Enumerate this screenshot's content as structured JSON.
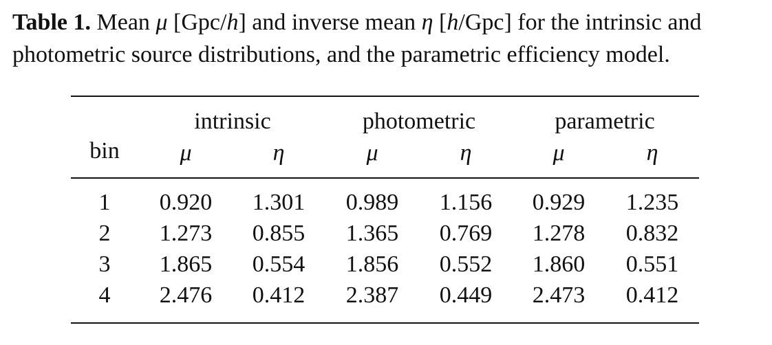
{
  "caption": {
    "label": "Table 1.",
    "text_1": " Mean ",
    "mu": "μ",
    "text_2": " [Gpc/",
    "h1": "h",
    "text_3": "] and inverse mean ",
    "eta": "η",
    "text_4": " [",
    "h2": "h",
    "text_5": "/Gpc] for the intrinsic and photometric source distributions, and the parametric efficiency model."
  },
  "table": {
    "groups": [
      "intrinsic",
      "photometric",
      "parametric"
    ],
    "bin_header": "bin",
    "sub_headers": [
      "μ",
      "η",
      "μ",
      "η",
      "μ",
      "η"
    ],
    "rows": [
      {
        "bin": "1",
        "values": [
          "0.920",
          "1.301",
          "0.989",
          "1.156",
          "0.929",
          "1.235"
        ]
      },
      {
        "bin": "2",
        "values": [
          "1.273",
          "0.855",
          "1.365",
          "0.769",
          "1.278",
          "0.832"
        ]
      },
      {
        "bin": "3",
        "values": [
          "1.865",
          "0.554",
          "1.856",
          "0.552",
          "1.860",
          "0.551"
        ]
      },
      {
        "bin": "4",
        "values": [
          "2.476",
          "0.412",
          "2.387",
          "0.449",
          "2.473",
          "0.412"
        ]
      }
    ]
  }
}
